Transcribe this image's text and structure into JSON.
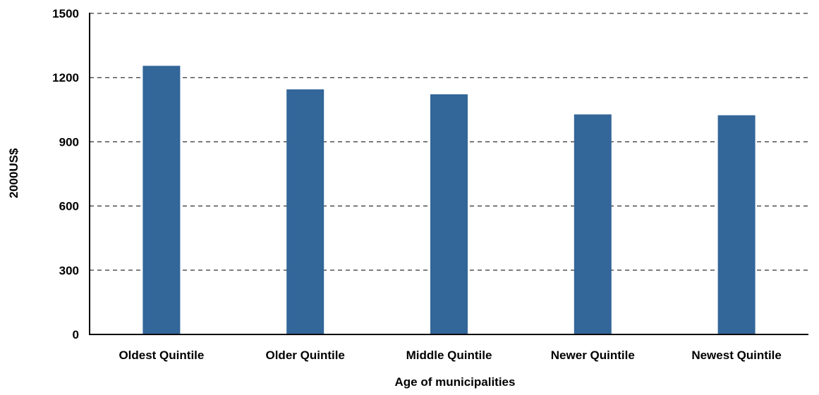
{
  "chart_data": {
    "type": "bar",
    "categories": [
      "Oldest Quintile",
      "Older Quintile",
      "Middle Quintile",
      "Newer Quintile",
      "Newest Quintile"
    ],
    "series": [
      {
        "values": [
          1255,
          1145,
          1122,
          1028,
          1024
        ]
      }
    ],
    "xlabel": "Age of municipalities",
    "ylabel": "2000US$",
    "ylim": [
      0,
      1500
    ],
    "yticks": [
      0,
      300,
      600,
      900,
      1200,
      1500
    ],
    "grid": true,
    "bar_color": "#336699"
  }
}
